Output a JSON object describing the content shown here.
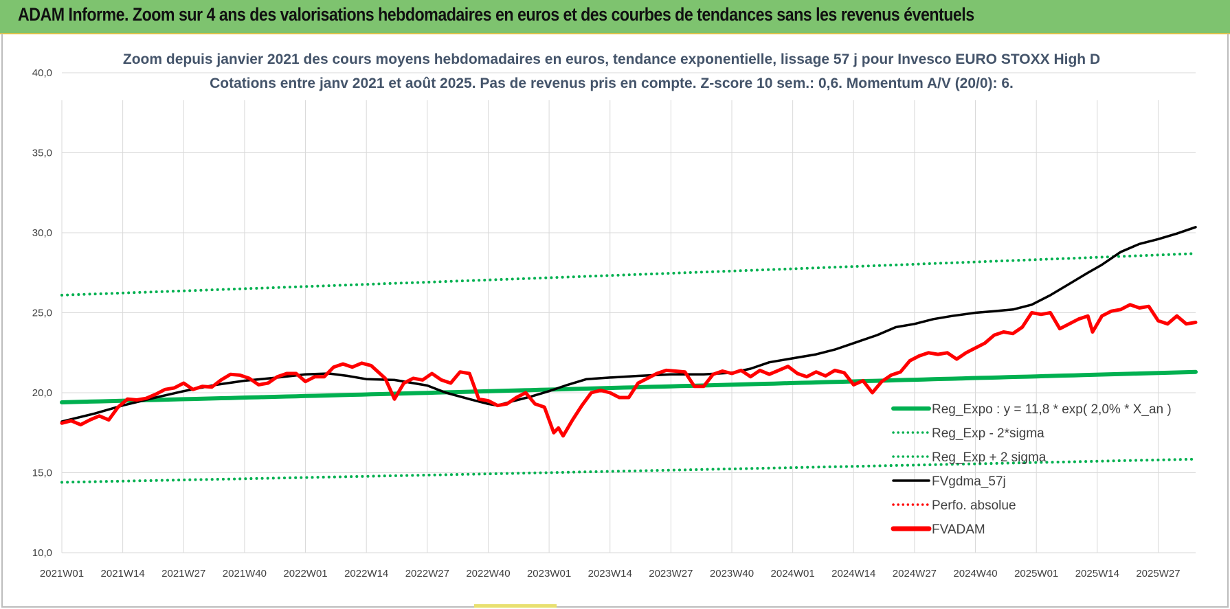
{
  "header": {
    "title": "ADAM Informe. Zoom sur 4 ans des valorisations hebdomadaires en euros et des courbes de tendances sans les revenus éventuels"
  },
  "colors": {
    "banner": "#7ec36f",
    "trend_green": "#00b050",
    "price_red": "#ff0000",
    "smooth_black": "#000000"
  },
  "chart_data": {
    "type": "line",
    "title_line1": "Zoom depuis janvier 2021 des cours moyens hebdomadaires en euros, tendance exponentielle, lissage 57 j pour Invesco EURO STOXX High D",
    "title_line2": "Cotations entre janv 2021 et août 2025. Pas de revenus pris en compte. Z-score 10 sem.: 0,6. Momentum A/V (20/0): 6.",
    "xlabel": "",
    "ylabel": "",
    "ylim": [
      10,
      40
    ],
    "yticks": [
      "10,0",
      "15,0",
      "20,0",
      "25,0",
      "30,0",
      "35,0",
      "40,0"
    ],
    "x_range": [
      "2021W01",
      "2025W35"
    ],
    "x_count": 243,
    "xtick_labels": [
      "2021W01",
      "2021W14",
      "2021W27",
      "2021W40",
      "2022W01",
      "2022W14",
      "2022W27",
      "2022W40",
      "2023W01",
      "2023W14",
      "2023W27",
      "2023W40",
      "2024W01",
      "2024W14",
      "2024W27",
      "2024W40",
      "2025W01",
      "2025W14",
      "2025W27"
    ],
    "xtick_step": 13,
    "grid": "vertical and horizontal",
    "legend_position": "bottom-right",
    "series": [
      {
        "name": "Reg_Expo : y = 11,8 * exp( 2,0% *  X_an )",
        "style": "solid-thick",
        "color": "#00b050",
        "points": [
          [
            "2021W01",
            19.4
          ],
          [
            "2025W35",
            21.3
          ]
        ]
      },
      {
        "name": "Reg_Exp - 2*sigma",
        "style": "dotted",
        "color": "#00b050",
        "points": [
          [
            "2021W01",
            26.1
          ],
          [
            "2025W35",
            28.7
          ]
        ]
      },
      {
        "name": "Reg_Exp + 2 sigma",
        "style": "dotted",
        "color": "#00b050",
        "points": [
          [
            "2021W01",
            14.4
          ],
          [
            "2025W35",
            15.85
          ]
        ]
      },
      {
        "name": "FVgdma_57j",
        "style": "solid",
        "color": "#000000",
        "points": [
          [
            "2021W01",
            18.2
          ],
          [
            "2021W08",
            18.7
          ],
          [
            "2021W14",
            19.2
          ],
          [
            "2021W21",
            19.7
          ],
          [
            "2021W27",
            20.1
          ],
          [
            "2021W34",
            20.5
          ],
          [
            "2021W40",
            20.75
          ],
          [
            "2021W47",
            20.95
          ],
          [
            "2022W01",
            21.15
          ],
          [
            "2022W06",
            21.2
          ],
          [
            "2022W10",
            21.05
          ],
          [
            "2022W14",
            20.85
          ],
          [
            "2022W20",
            20.8
          ],
          [
            "2022W27",
            20.45
          ],
          [
            "2022W31",
            20.0
          ],
          [
            "2022W36",
            19.6
          ],
          [
            "2022W40",
            19.3
          ],
          [
            "2022W42",
            19.2
          ],
          [
            "2022W45",
            19.45
          ],
          [
            "2022W49",
            19.75
          ],
          [
            "2023W01",
            20.1
          ],
          [
            "2023W05",
            20.5
          ],
          [
            "2023W09",
            20.85
          ],
          [
            "2023W14",
            20.95
          ],
          [
            "2023W20",
            21.05
          ],
          [
            "2023W27",
            21.15
          ],
          [
            "2023W34",
            21.15
          ],
          [
            "2023W40",
            21.25
          ],
          [
            "2023W44",
            21.5
          ],
          [
            "2023W48",
            21.9
          ],
          [
            "2024W01",
            22.15
          ],
          [
            "2024W06",
            22.4
          ],
          [
            "2024W10",
            22.7
          ],
          [
            "2024W14",
            23.1
          ],
          [
            "2024W19",
            23.6
          ],
          [
            "2024W23",
            24.1
          ],
          [
            "2024W27",
            24.3
          ],
          [
            "2024W31",
            24.6
          ],
          [
            "2024W35",
            24.8
          ],
          [
            "2024W40",
            25.0
          ],
          [
            "2024W44",
            25.1
          ],
          [
            "2024W48",
            25.2
          ],
          [
            "2024W52",
            25.5
          ],
          [
            "2025W04",
            26.1
          ],
          [
            "2025W08",
            26.8
          ],
          [
            "2025W12",
            27.5
          ],
          [
            "2025W15",
            28.0
          ],
          [
            "2025W19",
            28.8
          ],
          [
            "2025W23",
            29.3
          ],
          [
            "2025W27",
            29.6
          ],
          [
            "2025W31",
            29.95
          ],
          [
            "2025W35",
            30.35
          ]
        ]
      },
      {
        "name": "Perfo. absolue",
        "style": "dotted",
        "color": "#ff0000",
        "points": []
      },
      {
        "name": "FVADAM",
        "style": "solid-thick",
        "color": "#ff0000",
        "points": [
          [
            "2021W01",
            18.1
          ],
          [
            "2021W03",
            18.25
          ],
          [
            "2021W05",
            18.0
          ],
          [
            "2021W07",
            18.3
          ],
          [
            "2021W09",
            18.55
          ],
          [
            "2021W11",
            18.3
          ],
          [
            "2021W13",
            19.1
          ],
          [
            "2021W15",
            19.6
          ],
          [
            "2021W17",
            19.55
          ],
          [
            "2021W19",
            19.65
          ],
          [
            "2021W21",
            19.9
          ],
          [
            "2021W23",
            20.2
          ],
          [
            "2021W25",
            20.3
          ],
          [
            "2021W27",
            20.6
          ],
          [
            "2021W29",
            20.2
          ],
          [
            "2021W31",
            20.4
          ],
          [
            "2021W33",
            20.35
          ],
          [
            "2021W35",
            20.8
          ],
          [
            "2021W37",
            21.15
          ],
          [
            "2021W39",
            21.1
          ],
          [
            "2021W41",
            20.9
          ],
          [
            "2021W43",
            20.5
          ],
          [
            "2021W45",
            20.6
          ],
          [
            "2021W47",
            21.0
          ],
          [
            "2021W49",
            21.2
          ],
          [
            "2021W51",
            21.2
          ],
          [
            "2022W01",
            20.7
          ],
          [
            "2022W03",
            21.0
          ],
          [
            "2022W05",
            21.0
          ],
          [
            "2022W07",
            21.6
          ],
          [
            "2022W09",
            21.8
          ],
          [
            "2022W11",
            21.6
          ],
          [
            "2022W13",
            21.85
          ],
          [
            "2022W15",
            21.7
          ],
          [
            "2022W18",
            20.9
          ],
          [
            "2022W20",
            19.6
          ],
          [
            "2022W22",
            20.6
          ],
          [
            "2022W24",
            20.9
          ],
          [
            "2022W26",
            20.8
          ],
          [
            "2022W28",
            21.2
          ],
          [
            "2022W30",
            20.8
          ],
          [
            "2022W32",
            20.6
          ],
          [
            "2022W34",
            21.3
          ],
          [
            "2022W36",
            21.2
          ],
          [
            "2022W38",
            19.6
          ],
          [
            "2022W40",
            19.5
          ],
          [
            "2022W42",
            19.2
          ],
          [
            "2022W44",
            19.3
          ],
          [
            "2022W46",
            19.7
          ],
          [
            "2022W48",
            20.0
          ],
          [
            "2022W50",
            19.3
          ],
          [
            "2022W52",
            19.1
          ],
          [
            "2023W02",
            17.5
          ],
          [
            "2023W03",
            17.8
          ],
          [
            "2023W04",
            17.3
          ],
          [
            "2023W06",
            18.3
          ],
          [
            "2023W08",
            19.2
          ],
          [
            "2023W10",
            20.0
          ],
          [
            "2023W12",
            20.15
          ],
          [
            "2023W14",
            20.0
          ],
          [
            "2023W16",
            19.7
          ],
          [
            "2023W18",
            19.7
          ],
          [
            "2023W20",
            20.6
          ],
          [
            "2023W22",
            20.9
          ],
          [
            "2023W24",
            21.2
          ],
          [
            "2023W26",
            21.4
          ],
          [
            "2023W28",
            21.35
          ],
          [
            "2023W30",
            21.3
          ],
          [
            "2023W32",
            20.4
          ],
          [
            "2023W34",
            20.4
          ],
          [
            "2023W36",
            21.15
          ],
          [
            "2023W38",
            21.35
          ],
          [
            "2023W40",
            21.2
          ],
          [
            "2023W42",
            21.4
          ],
          [
            "2023W44",
            21.0
          ],
          [
            "2023W46",
            21.4
          ],
          [
            "2023W48",
            21.15
          ],
          [
            "2023W50",
            21.4
          ],
          [
            "2023W52",
            21.65
          ],
          [
            "2024W02",
            21.2
          ],
          [
            "2024W04",
            21.0
          ],
          [
            "2024W06",
            21.3
          ],
          [
            "2024W08",
            21.05
          ],
          [
            "2024W10",
            21.4
          ],
          [
            "2024W12",
            21.25
          ],
          [
            "2024W14",
            20.5
          ],
          [
            "2024W16",
            20.75
          ],
          [
            "2024W18",
            20.0
          ],
          [
            "2024W20",
            20.7
          ],
          [
            "2024W22",
            21.1
          ],
          [
            "2024W24",
            21.3
          ],
          [
            "2024W26",
            22.0
          ],
          [
            "2024W28",
            22.3
          ],
          [
            "2024W30",
            22.5
          ],
          [
            "2024W32",
            22.4
          ],
          [
            "2024W34",
            22.5
          ],
          [
            "2024W36",
            22.1
          ],
          [
            "2024W38",
            22.5
          ],
          [
            "2024W40",
            22.8
          ],
          [
            "2024W42",
            23.1
          ],
          [
            "2024W44",
            23.6
          ],
          [
            "2024W46",
            23.8
          ],
          [
            "2024W48",
            23.7
          ],
          [
            "2024W50",
            24.1
          ],
          [
            "2024W52",
            25.0
          ],
          [
            "2025W02",
            24.9
          ],
          [
            "2025W04",
            25.0
          ],
          [
            "2025W06",
            24.0
          ],
          [
            "2025W08",
            24.3
          ],
          [
            "2025W10",
            24.6
          ],
          [
            "2025W12",
            24.8
          ],
          [
            "2025W13",
            23.8
          ],
          [
            "2025W15",
            24.8
          ],
          [
            "2025W17",
            25.1
          ],
          [
            "2025W19",
            25.2
          ],
          [
            "2025W21",
            25.5
          ],
          [
            "2025W23",
            25.3
          ],
          [
            "2025W25",
            25.4
          ],
          [
            "2025W27",
            24.5
          ],
          [
            "2025W29",
            24.3
          ],
          [
            "2025W31",
            24.8
          ],
          [
            "2025W33",
            24.3
          ],
          [
            "2025W35",
            24.4
          ]
        ]
      }
    ]
  }
}
